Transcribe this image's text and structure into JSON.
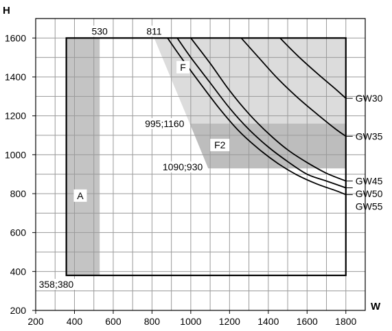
{
  "chart_data": {
    "type": "line",
    "xlabel": "W",
    "ylabel": "H",
    "xlim": [
      200,
      1900
    ],
    "ylim": [
      200,
      1700
    ],
    "xticks": [
      200,
      400,
      600,
      800,
      1000,
      1200,
      1400,
      1600,
      1800
    ],
    "yticks": [
      200,
      400,
      600,
      800,
      1000,
      1200,
      1400,
      1600
    ],
    "grid": true,
    "colors": {
      "grid": "#9a9a9a",
      "region_A": "#c4c4c4",
      "region_F": "#dcdcdc",
      "region_F2": "#bdbdbd",
      "frame": "#000000",
      "curve": "#000000"
    },
    "frame": {
      "x": [
        358,
        1800
      ],
      "y": [
        380,
        1600
      ]
    },
    "regions": [
      {
        "label": "A",
        "polygon": [
          [
            358,
            380
          ],
          [
            530,
            380
          ],
          [
            530,
            1600
          ],
          [
            358,
            1600
          ]
        ]
      },
      {
        "label": "F",
        "polygon": [
          [
            811,
            1600
          ],
          [
            1800,
            1600
          ],
          [
            1800,
            1160
          ],
          [
            995,
            1160
          ]
        ]
      },
      {
        "label": "F2",
        "polygon": [
          [
            995,
            1160
          ],
          [
            1800,
            1160
          ],
          [
            1800,
            930
          ],
          [
            1090,
            930
          ]
        ]
      }
    ],
    "series": [
      {
        "name": "GW30",
        "x": [
          1460,
          1550,
          1650,
          1750,
          1800
        ],
        "y": [
          1600,
          1510,
          1420,
          1335,
          1290
        ]
      },
      {
        "name": "GW35",
        "x": [
          1260,
          1350,
          1450,
          1550,
          1650,
          1750,
          1800
        ],
        "y": [
          1600,
          1500,
          1390,
          1295,
          1210,
          1130,
          1095
        ]
      },
      {
        "name": "GW45",
        "x": [
          1000,
          1100,
          1200,
          1300,
          1400,
          1500,
          1600,
          1700,
          1800
        ],
        "y": [
          1600,
          1470,
          1330,
          1210,
          1110,
          1025,
          960,
          905,
          865
        ]
      },
      {
        "name": "GW50",
        "x": [
          930,
          1000,
          1100,
          1200,
          1300,
          1400,
          1500,
          1600,
          1700,
          1800
        ],
        "y": [
          1600,
          1500,
          1370,
          1240,
          1130,
          1040,
          965,
          900,
          865,
          830
        ]
      },
      {
        "name": "GW55",
        "x": [
          880,
          950,
          1050,
          1150,
          1250,
          1350,
          1450,
          1550,
          1650,
          1750,
          1800
        ],
        "y": [
          1600,
          1500,
          1365,
          1235,
          1120,
          1030,
          955,
          895,
          850,
          815,
          795
        ]
      }
    ],
    "annotations": [
      {
        "text": "530",
        "x": 530,
        "y": 1600
      },
      {
        "text": "811",
        "x": 811,
        "y": 1600
      },
      {
        "text": "995;1160",
        "x": 995,
        "y": 1160
      },
      {
        "text": "1090;930",
        "x": 1090,
        "y": 930
      },
      {
        "text": "358;380",
        "x": 358,
        "y": 380
      }
    ]
  }
}
